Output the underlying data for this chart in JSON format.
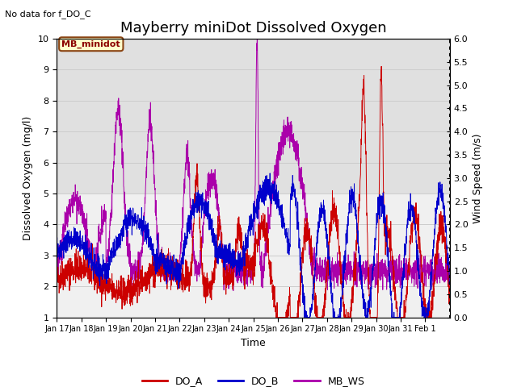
{
  "title": "Mayberry miniDot Dissolved Oxygen",
  "subtitle": "No data for f_DO_C",
  "xlabel": "Time",
  "ylabel_left": "Dissolved Oxygen (mg/l)",
  "ylabel_right": "Wind Speed (m/s)",
  "ylim_left": [
    1.0,
    10.0
  ],
  "ylim_right": [
    0.0,
    6.0
  ],
  "yticks_left": [
    1.0,
    2.0,
    3.0,
    4.0,
    5.0,
    6.0,
    7.0,
    8.0,
    9.0,
    10.0
  ],
  "yticks_right": [
    0.0,
    0.5,
    1.0,
    1.5,
    2.0,
    2.5,
    3.0,
    3.5,
    4.0,
    4.5,
    5.0,
    5.5,
    6.0
  ],
  "xtick_labels": [
    "Jan 17",
    "Jan 18",
    "Jan 19",
    "Jan 20",
    "Jan 21",
    "Jan 22",
    "Jan 23",
    "Jan 24",
    "Jan 25",
    "Jan 26",
    "Jan 27",
    "Jan 28",
    "Jan 29",
    "Jan 30",
    "Jan 31",
    "Feb 1"
  ],
  "color_DO_A": "#cc0000",
  "color_DO_B": "#0000cc",
  "color_MB_WS": "#aa00aa",
  "legend_box_label": "MB_minidot",
  "legend_box_color": "#ffffcc",
  "legend_box_edge": "#8B4513",
  "grid_color": "#cccccc",
  "bg_color_upper": "#e0e0e0",
  "bg_color_lower": "#f0f0f0",
  "title_fontsize": 13,
  "axis_label_fontsize": 9,
  "tick_fontsize": 8,
  "legend_fontsize": 9
}
